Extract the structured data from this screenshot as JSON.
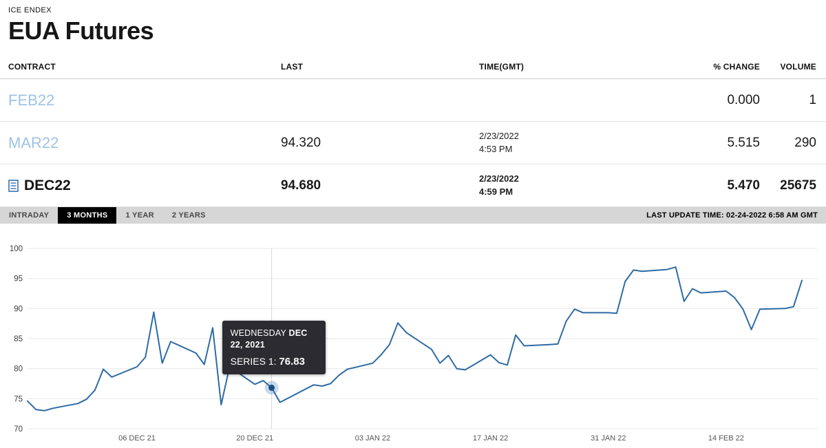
{
  "page": {
    "kicker": "ICE ENDEX",
    "title": "EUA Futures"
  },
  "table": {
    "headers": [
      "CONTRACT",
      "LAST",
      "TIME(GMT)",
      "% CHANGE",
      "VOLUME"
    ],
    "rows": [
      {
        "contract": "FEB22",
        "last": "",
        "time_date": "",
        "time_clock": "",
        "change": "0.000",
        "volume": "1"
      },
      {
        "contract": "MAR22",
        "last": "94.320",
        "time_date": "2/23/2022",
        "time_clock": "4:53 PM",
        "change": "5.515",
        "volume": "290"
      },
      {
        "contract": "DEC22",
        "last": "94.680",
        "time_date": "2/23/2022",
        "time_clock": "4:59 PM",
        "change": "5.470",
        "volume": "25675"
      }
    ]
  },
  "tabs": {
    "items": [
      {
        "label": "INTRADAY",
        "active": false
      },
      {
        "label": "3 MONTHS",
        "active": true
      },
      {
        "label": "1 YEAR",
        "active": false
      },
      {
        "label": "2 YEARS",
        "active": false
      }
    ],
    "last_update": "LAST UPDATE TIME: 02-24-2022 6:58 AM GMT"
  },
  "tooltip": {
    "day_label": "WEDNESDAY",
    "date_label": "DEC 22, 2021",
    "series_label": "SERIES 1:",
    "value": "76.83"
  },
  "colors": {
    "link_blue": "#9dc3e6",
    "line_blue": "#2d6ba3",
    "marker_blue": "#1c4f87",
    "marker_halo": "rgba(45,107,163,0.25)",
    "tooltip_bg": "#2b2b31",
    "tabbar_bg": "#d6d6d6",
    "tab_active_bg": "#000000",
    "tab_active_text": "#ffffff"
  },
  "chart_data": {
    "type": "line",
    "title": "EUA Futures DEC22 - 3 months",
    "xlabel": "",
    "ylabel": "",
    "ylim": [
      70,
      100
    ],
    "yticks": [
      70,
      75,
      80,
      85,
      90,
      95,
      100
    ],
    "grid": "horizontal",
    "legend": "none",
    "xticks": [
      {
        "date": "2021-12-06",
        "label": "06 DEC 21"
      },
      {
        "date": "2021-12-20",
        "label": "20 DEC 21"
      },
      {
        "date": "2022-01-03",
        "label": "03 JAN 22"
      },
      {
        "date": "2022-01-17",
        "label": "17 JAN 22"
      },
      {
        "date": "2022-01-31",
        "label": "31 JAN 22"
      },
      {
        "date": "2022-02-14",
        "label": "14 FEB 22"
      }
    ],
    "x": [
      "2021-11-23",
      "2021-11-24",
      "2021-11-25",
      "2021-11-26",
      "2021-11-29",
      "2021-11-30",
      "2021-12-01",
      "2021-12-02",
      "2021-12-03",
      "2021-12-06",
      "2021-12-07",
      "2021-12-08",
      "2021-12-09",
      "2021-12-10",
      "2021-12-13",
      "2021-12-14",
      "2021-12-15",
      "2021-12-16",
      "2021-12-17",
      "2021-12-20",
      "2021-12-21",
      "2021-12-22",
      "2021-12-23",
      "2021-12-27",
      "2021-12-28",
      "2021-12-29",
      "2021-12-30",
      "2021-12-31",
      "2022-01-03",
      "2022-01-04",
      "2022-01-05",
      "2022-01-06",
      "2022-01-07",
      "2022-01-10",
      "2022-01-11",
      "2022-01-12",
      "2022-01-13",
      "2022-01-14",
      "2022-01-17",
      "2022-01-18",
      "2022-01-19",
      "2022-01-20",
      "2022-01-21",
      "2022-01-24",
      "2022-01-25",
      "2022-01-26",
      "2022-01-27",
      "2022-01-28",
      "2022-01-31",
      "2022-02-01",
      "2022-02-02",
      "2022-02-03",
      "2022-02-04",
      "2022-02-07",
      "2022-02-08",
      "2022-02-09",
      "2022-02-10",
      "2022-02-11",
      "2022-02-14",
      "2022-02-15",
      "2022-02-16",
      "2022-02-17",
      "2022-02-18",
      "2022-02-21",
      "2022-02-22",
      "2022-02-23"
    ],
    "series": [
      {
        "name": "Series 1",
        "color": "#2d6ba3",
        "values": [
          74.6,
          73.2,
          73.0,
          73.4,
          74.2,
          74.9,
          76.4,
          79.9,
          78.6,
          80.3,
          81.9,
          89.4,
          80.9,
          84.5,
          82.6,
          80.7,
          86.8,
          74.0,
          80.3,
          77.4,
          78.0,
          76.83,
          74.4,
          77.3,
          77.1,
          77.5,
          78.9,
          79.9,
          80.9,
          82.3,
          84.0,
          87.6,
          86.0,
          83.2,
          80.9,
          82.2,
          80.0,
          79.8,
          82.3,
          81.0,
          80.6,
          85.6,
          83.8,
          84.0,
          84.1,
          87.9,
          89.9,
          89.3,
          89.3,
          89.2,
          94.5,
          96.4,
          96.2,
          96.5,
          96.9,
          91.2,
          93.3,
          92.6,
          92.9,
          91.8,
          89.9,
          86.5,
          89.9,
          90.0,
          90.3,
          94.68
        ]
      }
    ],
    "highlight": {
      "date": "2021-12-22",
      "value": 76.83
    }
  }
}
